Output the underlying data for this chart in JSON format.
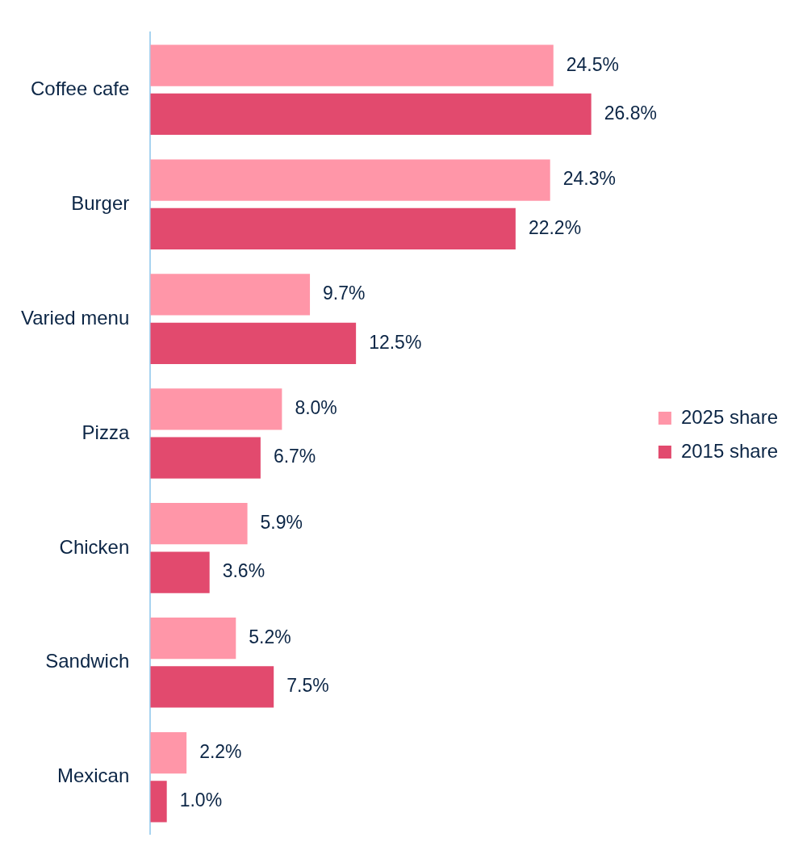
{
  "chart_data": {
    "type": "bar",
    "orientation": "horizontal",
    "categories": [
      "Coffee cafe",
      "Burger",
      "Varied menu",
      "Pizza",
      "Chicken",
      "Sandwich",
      "Mexican"
    ],
    "series": [
      {
        "name": "2025 share",
        "color": "#ff96a8",
        "values": [
          24.5,
          24.3,
          9.7,
          8.0,
          5.9,
          5.2,
          2.2
        ],
        "value_labels": [
          "24.5%",
          "24.3%",
          "9.7%",
          "8.0%",
          "5.9%",
          "5.2%",
          "2.2%"
        ]
      },
      {
        "name": "2015 share",
        "color": "#e24a6e",
        "values": [
          26.8,
          22.2,
          12.5,
          6.7,
          3.6,
          7.5,
          1.0
        ],
        "value_labels": [
          "26.8%",
          "22.2%",
          "12.5%",
          "6.7%",
          "3.6%",
          "7.5%",
          "1.0%"
        ]
      }
    ],
    "legend": "right",
    "grid": false,
    "tick_labels": "y"
  }
}
